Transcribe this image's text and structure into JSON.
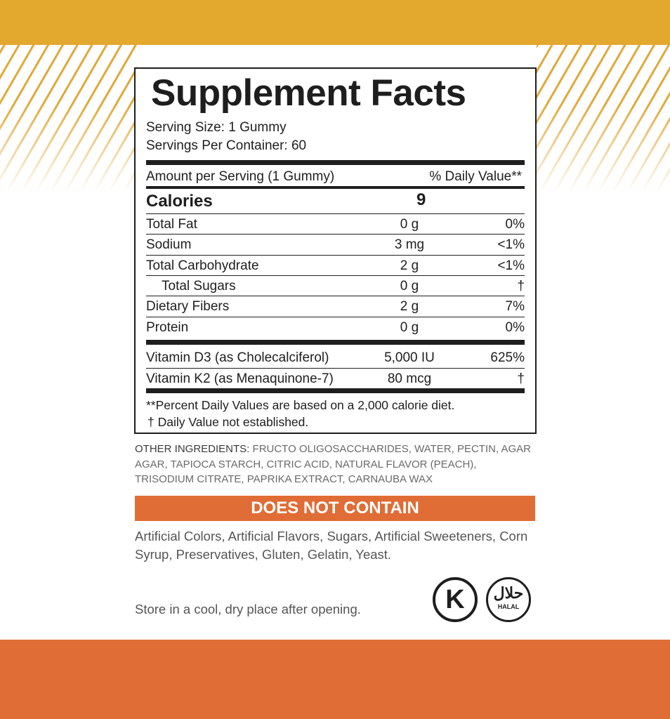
{
  "colors": {
    "top_band": "#e3a82e",
    "bottom_band": "#df6d35",
    "accent": "#df6d35"
  },
  "label": {
    "title": "Supplement Facts",
    "serving_size": "Serving Size: 1 Gummy",
    "servings_per_container": "Servings Per Container: 60",
    "amount_header": "Amount per Serving (1 Gummy)",
    "dv_header": "% Daily Value**",
    "calories_label": "Calories",
    "calories_value": "9",
    "nutrients": [
      {
        "name": "Total Fat",
        "amount": "0 g",
        "dv": "0%"
      },
      {
        "name": "Sodium",
        "amount": "3 mg",
        "dv": "<1%"
      },
      {
        "name": "Total Carbohydrate",
        "amount": "2 g",
        "dv": "<1%"
      },
      {
        "name": "Total Sugars",
        "amount": "0 g",
        "dv": "†"
      },
      {
        "name": "Dietary Fibers",
        "amount": "2 g",
        "dv": "7%"
      },
      {
        "name": "Protein",
        "amount": "0 g",
        "dv": "0%"
      }
    ],
    "vitamins": [
      {
        "name": "Vitamin D3 (as Cholecalciferol)",
        "amount": "5,000 IU",
        "dv": "625%"
      },
      {
        "name": "Vitamin K2 (as Menaquinone-7)",
        "amount": "80 mcg",
        "dv": "†"
      }
    ],
    "footnote1": "**Percent Daily Values are based on a 2,000 calorie diet.",
    "footnote2": "† Daily Value not established."
  },
  "other_ingredients": {
    "label": "OTHER INGREDIENTS:",
    "text": " FRUCTO OLIGOSACCHARIDES, WATER, PECTIN, AGAR AGAR, TAPIOCA STARCH, CITRIC ACID, NATURAL FLAVOR (PEACH), TRISODIUM CITRATE, PAPRIKA EXTRACT, CARNAUBA WAX"
  },
  "does_not_contain": {
    "heading": "DOES NOT CONTAIN",
    "text": "Artificial Colors, Artificial Flavors, Sugars, Artificial Sweeteners, Corn Syrup, Preservatives, Gluten, Gelatin, Yeast."
  },
  "storage": "Store in a cool, dry place after opening.",
  "badges": {
    "kosher": "K",
    "halal_arabic": "حلال",
    "halal": "HALAL"
  }
}
